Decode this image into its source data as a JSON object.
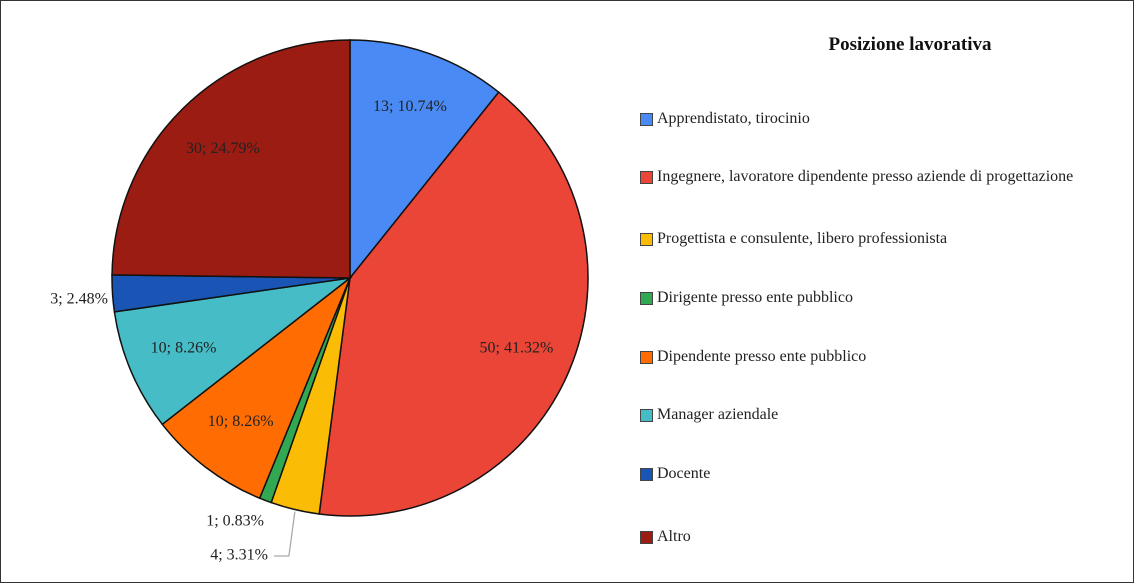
{
  "chart_data": {
    "type": "pie",
    "title": "Posizione lavorativa",
    "categories": [
      "Apprendistato, tirocinio",
      "Ingegnere, lavoratore dipendente presso aziende di progettazione",
      "Progettista e consulente, libero professionista",
      "Dirigente presso ente pubblico",
      "Dipendente presso ente pubblico",
      "Manager aziendale",
      "Docente",
      "Altro"
    ],
    "values": [
      13,
      50,
      4,
      1,
      10,
      10,
      3,
      30
    ],
    "value_labels": [
      "13; 10.74%",
      "50; 41.32%",
      "4; 3.31%",
      "1; 0.83%",
      "10; 8.26%",
      "10; 8.26%",
      "3; 2.48%",
      "30; 24.79%"
    ],
    "colors": [
      "#4a8af4",
      "#ea4537",
      "#fbbc05",
      "#33a852",
      "#ff6d02",
      "#46bdc6",
      "#1a55b5",
      "#9b1c12"
    ]
  }
}
